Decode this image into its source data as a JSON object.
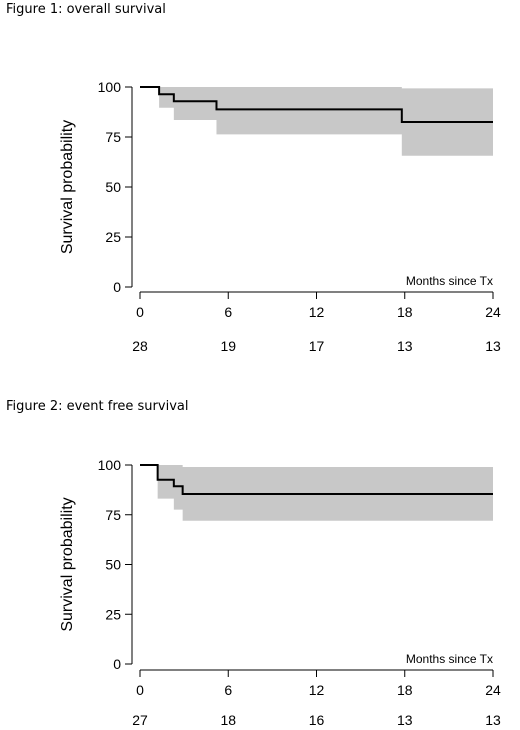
{
  "figures": [
    {
      "title": "Figure 1: overall survival"
    },
    {
      "title": "Figure 2: event free survival"
    }
  ],
  "chart_data": [
    {
      "type": "line",
      "title": "Figure 1: overall survival",
      "xlabel": "Months since Tx",
      "ylabel": "Survival probability",
      "xlim": [
        0,
        24
      ],
      "ylim": [
        0,
        100
      ],
      "x_ticks": [
        0,
        6,
        12,
        18,
        24
      ],
      "y_ticks": [
        0,
        25,
        50,
        75,
        100
      ],
      "series": [
        {
          "x": [
            0,
            1.3,
            1.3,
            2.3,
            2.3,
            5.2,
            5.2,
            17.8,
            17.8,
            24
          ],
          "y": [
            100,
            100,
            96.4,
            96.4,
            92.9,
            92.9,
            88.8,
            88.8,
            82.5,
            82.5
          ]
        }
      ],
      "ci_band": {
        "x": [
          0,
          1.3,
          1.3,
          2.3,
          2.3,
          5.2,
          5.2,
          17.8,
          17.8,
          24
        ],
        "lower": [
          100,
          100,
          89.6,
          89.6,
          83.5,
          83.5,
          76.3,
          76.3,
          65.6,
          65.6
        ],
        "upper": [
          100,
          100,
          100,
          100,
          100,
          100,
          100,
          100,
          99.3,
          99.3
        ]
      },
      "at_risk": [
        28,
        19,
        17,
        13,
        13
      ],
      "grid": false
    },
    {
      "type": "line",
      "title": "Figure 2: event free survival",
      "xlabel": "Months since Tx",
      "ylabel": "Survival probability",
      "xlim": [
        0,
        24
      ],
      "ylim": [
        0,
        100
      ],
      "x_ticks": [
        0,
        6,
        12,
        18,
        24
      ],
      "y_ticks": [
        0,
        25,
        50,
        75,
        100
      ],
      "series": [
        {
          "x": [
            0,
            1.2,
            1.2,
            2.3,
            2.3,
            2.9,
            2.9,
            24
          ],
          "y": [
            100,
            100,
            92.6,
            92.6,
            89.3,
            89.3,
            85.4,
            85.4
          ]
        }
      ],
      "ci_band": {
        "x": [
          0,
          1.2,
          1.2,
          2.3,
          2.3,
          2.9,
          2.9,
          24
        ],
        "lower": [
          100,
          100,
          83.1,
          83.1,
          77.6,
          77.6,
          72.0,
          72.0
        ],
        "upper": [
          100,
          100,
          100,
          100,
          100,
          100,
          99.0,
          99.0
        ]
      },
      "at_risk": [
        27,
        18,
        16,
        13,
        13
      ],
      "grid": false
    }
  ]
}
